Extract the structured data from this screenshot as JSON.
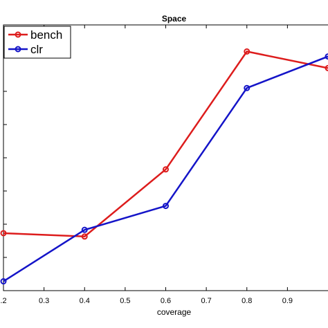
{
  "chart_data": {
    "type": "line",
    "title": "Space",
    "xlabel": "coverage",
    "ylabel": "",
    "xlim": [
      0.2,
      1.0
    ],
    "ylim": [
      0,
      8
    ],
    "x_tick_labels": [
      ".2",
      "0.3",
      "0.4",
      "0.5",
      "0.6",
      "0.7",
      "0.8",
      "0.9"
    ],
    "x_ticks": [
      0.2,
      0.3,
      0.4,
      0.5,
      0.6,
      0.7,
      0.8,
      0.9
    ],
    "y_ticks": [
      0,
      1,
      2,
      3,
      4,
      5,
      6,
      7,
      8
    ],
    "legend_position": "top-left",
    "grid": false,
    "series": [
      {
        "name": "bench",
        "color": "#dd1c1c",
        "marker": "circle",
        "x": [
          0.2,
          0.4,
          0.6,
          0.8,
          1.0
        ],
        "y": [
          1.73,
          1.63,
          3.65,
          7.2,
          6.7
        ]
      },
      {
        "name": "clr",
        "color": "#1414c8",
        "marker": "circle",
        "x": [
          0.2,
          0.4,
          0.6,
          0.8,
          1.0
        ],
        "y": [
          0.28,
          1.83,
          2.55,
          6.1,
          7.05
        ]
      }
    ]
  }
}
